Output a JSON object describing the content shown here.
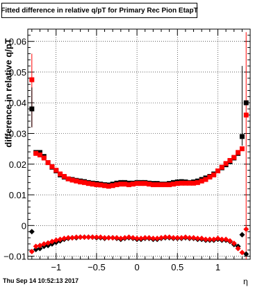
{
  "chart_data": {
    "type": "scatter",
    "title": "Fitted difference in relative q/pT for Primary Rec Pion EtapT",
    "xlabel": "η",
    "ylabel": "difference in relative q/pT",
    "xlim": [
      -1.35,
      1.4
    ],
    "ylim": [
      -0.011,
      0.064
    ],
    "xticks": [
      -1,
      -0.5,
      0,
      0.5,
      1
    ],
    "xtick_labels": [
      "−1",
      "−0.5",
      "0",
      "0.5",
      "1"
    ],
    "yticks": [
      -0.01,
      0,
      0.01,
      0.02,
      0.03,
      0.04,
      0.05,
      0.06
    ],
    "ytick_labels": [
      "−0.01",
      "0",
      "0.01",
      "0.02",
      "0.03",
      "0.04",
      "0.05",
      "0.06"
    ],
    "grid": true,
    "x": [
      -1.3,
      -1.25,
      -1.2,
      -1.15,
      -1.1,
      -1.05,
      -1.0,
      -0.95,
      -0.9,
      -0.85,
      -0.8,
      -0.75,
      -0.7,
      -0.65,
      -0.6,
      -0.55,
      -0.5,
      -0.45,
      -0.4,
      -0.35,
      -0.3,
      -0.25,
      -0.2,
      -0.15,
      -0.1,
      -0.05,
      0.0,
      0.05,
      0.1,
      0.15,
      0.2,
      0.25,
      0.3,
      0.35,
      0.4,
      0.45,
      0.5,
      0.55,
      0.6,
      0.65,
      0.7,
      0.75,
      0.8,
      0.85,
      0.9,
      0.95,
      1.0,
      1.05,
      1.1,
      1.15,
      1.2,
      1.25,
      1.3,
      1.35
    ],
    "series": [
      {
        "color": "#000000",
        "marker": "square",
        "upper": [
          0.038,
          0.0238,
          0.0238,
          0.0225,
          0.0205,
          0.019,
          0.0178,
          0.0165,
          0.0158,
          0.0152,
          0.015,
          0.0147,
          0.0145,
          0.0143,
          0.014,
          0.0138,
          0.0137,
          0.0135,
          0.0133,
          0.0132,
          0.0135,
          0.0138,
          0.014,
          0.014,
          0.0138,
          0.0138,
          0.014,
          0.014,
          0.014,
          0.0138,
          0.0137,
          0.0137,
          0.0135,
          0.0135,
          0.0137,
          0.014,
          0.0142,
          0.0143,
          0.0142,
          0.014,
          0.0142,
          0.0145,
          0.015,
          0.0155,
          0.016,
          0.0168,
          0.0178,
          0.0188,
          0.0198,
          0.0208,
          0.022,
          0.0235,
          0.029,
          0.04
        ],
        "lower": [
          -0.002,
          -0.0078,
          -0.0075,
          -0.0068,
          -0.0065,
          -0.006,
          -0.0055,
          -0.005,
          -0.0045,
          -0.0042,
          -0.004,
          -0.004,
          -0.0038,
          -0.0038,
          -0.0038,
          -0.0038,
          -0.004,
          -0.004,
          -0.0042,
          -0.004,
          -0.004,
          -0.0042,
          -0.0045,
          -0.0042,
          -0.004,
          -0.0042,
          -0.0045,
          -0.0045,
          -0.0042,
          -0.0042,
          -0.0045,
          -0.0045,
          -0.0042,
          -0.004,
          -0.004,
          -0.0042,
          -0.0042,
          -0.0042,
          -0.004,
          -0.0042,
          -0.0042,
          -0.0045,
          -0.0045,
          -0.0048,
          -0.0048,
          -0.0048,
          -0.0045,
          -0.0048,
          -0.0048,
          -0.0052,
          -0.0062,
          -0.0068,
          -0.003,
          -0.0093
        ]
      },
      {
        "color": "#ff0000",
        "marker": "square",
        "upper": [
          0.0475,
          0.0235,
          0.023,
          0.022,
          0.0205,
          0.0192,
          0.018,
          0.0168,
          0.016,
          0.0152,
          0.0148,
          0.0145,
          0.0142,
          0.014,
          0.0137,
          0.0135,
          0.0133,
          0.0132,
          0.013,
          0.0128,
          0.013,
          0.0133,
          0.0135,
          0.0135,
          0.0133,
          0.0135,
          0.0137,
          0.0137,
          0.0137,
          0.0135,
          0.0133,
          0.0133,
          0.0133,
          0.0133,
          0.0133,
          0.0135,
          0.0137,
          0.0138,
          0.0138,
          0.0138,
          0.0138,
          0.014,
          0.0145,
          0.015,
          0.0158,
          0.0165,
          0.0178,
          0.019,
          0.0202,
          0.0212,
          0.0222,
          0.0238,
          0.025,
          0.036
        ],
        "lower": [
          -0.0085,
          -0.0068,
          -0.0065,
          -0.006,
          -0.0057,
          -0.0052,
          -0.0048,
          -0.0045,
          -0.0042,
          -0.004,
          -0.004,
          -0.0038,
          -0.0038,
          -0.0038,
          -0.0038,
          -0.0038,
          -0.0038,
          -0.0038,
          -0.004,
          -0.004,
          -0.004,
          -0.004,
          -0.0042,
          -0.004,
          -0.0038,
          -0.004,
          -0.0042,
          -0.0042,
          -0.004,
          -0.004,
          -0.0042,
          -0.0042,
          -0.004,
          -0.0038,
          -0.0038,
          -0.004,
          -0.004,
          -0.004,
          -0.0038,
          -0.004,
          -0.004,
          -0.0042,
          -0.0042,
          -0.0045,
          -0.0045,
          -0.0045,
          -0.0042,
          -0.0045,
          -0.0045,
          -0.005,
          -0.0058,
          -0.0075,
          -0.0088,
          -0.0012
        ]
      }
    ]
  },
  "footer_text": "Thu Sep 14 10:52:13 2017"
}
